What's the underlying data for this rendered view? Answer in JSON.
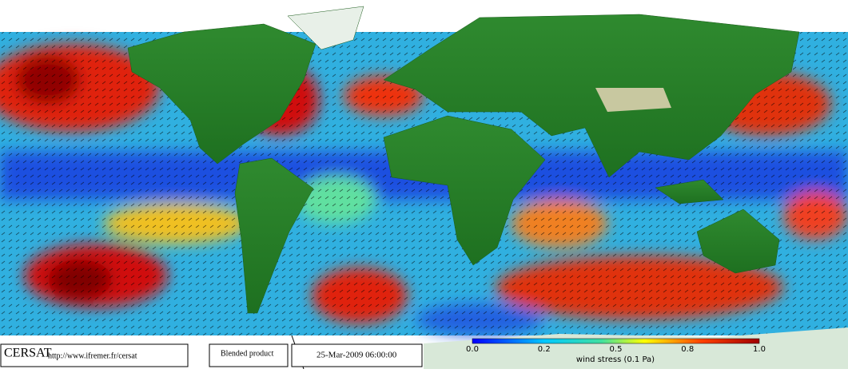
{
  "footer": {
    "logo": "CERSAT",
    "url": "http://www.ifremer.fr/cersat",
    "product": "Blended product",
    "datetime": "25-Mar-2009 06:00:00"
  },
  "colorbar": {
    "tick_labels": [
      "0.0",
      "0.2",
      "0.5",
      "0.8",
      "1.0"
    ],
    "label": "wind stress (0.1 Pa)"
  }
}
